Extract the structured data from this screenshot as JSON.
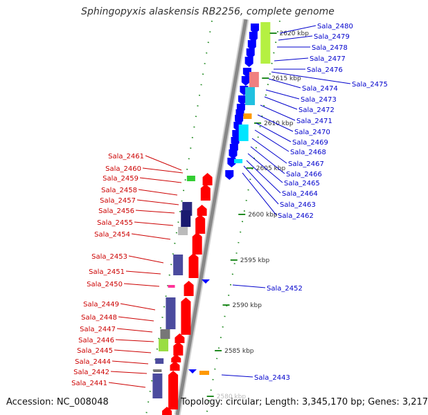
{
  "title": "Sphingopyxis alaskensis RB2256, complete genome",
  "accession": "Accession: NC_008048",
  "summary": "Topology: circular; Length: 3,345,170 bp; Genes: 3,217",
  "colors": {
    "forward_arrow": "#ff0000",
    "reverse_arrow": "#0000ff",
    "forward_label": "#cc0000",
    "reverse_label": "#0000cc",
    "backbone": "#888888",
    "dots": "#228b22"
  },
  "tick_labels": [
    "2620 kbp",
    "2615 kbp",
    "2610 kbp",
    "2605 kbp",
    "2600 kbp",
    "2595 kbp",
    "2590 kbp",
    "2585 kbp",
    "2580 kbp"
  ],
  "forward_genes": [
    "Sala_2461",
    "Sala_2460",
    "Sala_2459",
    "Sala_2458",
    "Sala_2457",
    "Sala_2456",
    "Sala_2455",
    "Sala_2454",
    "Sala_2453",
    "Sala_2451",
    "Sala_2450",
    "Sala_2449",
    "Sala_2448",
    "Sala_2447",
    "Sala_2446",
    "Sala_2445",
    "Sala_2444",
    "Sala_2442",
    "Sala_2441"
  ],
  "reverse_genes": [
    "Sala_2480",
    "Sala_2479",
    "Sala_2478",
    "Sala_2477",
    "Sala_2476",
    "Sala_2475",
    "Sala_2474",
    "Sala_2473",
    "Sala_2472",
    "Sala_2471",
    "Sala_2470",
    "Sala_2469",
    "Sala_2468",
    "Sala_2467",
    "Sala_2466",
    "Sala_2465",
    "Sala_2464",
    "Sala_2463",
    "Sala_2462",
    "Sala_2452",
    "Sala_2443"
  ]
}
